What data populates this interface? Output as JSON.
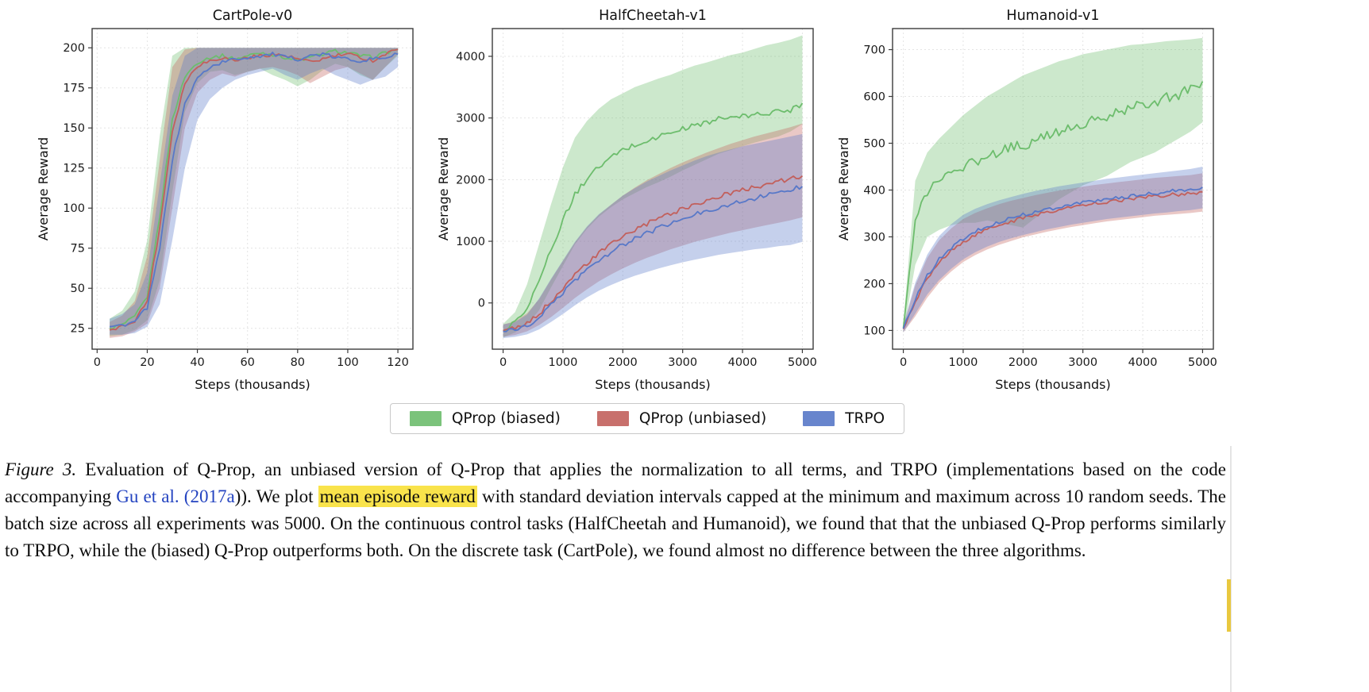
{
  "page": {
    "background": "#ffffff"
  },
  "chart_data": [
    {
      "type": "line",
      "title": "CartPole-v0",
      "xlabel": "Steps (thousands)",
      "ylabel": "Average Reward",
      "xlim": [
        -2,
        126
      ],
      "ylim": [
        12,
        212
      ],
      "xticks": [
        0,
        20,
        40,
        60,
        80,
        100,
        120
      ],
      "yticks": [
        25,
        50,
        75,
        100,
        125,
        150,
        175,
        200
      ],
      "grid": true,
      "legend_position": "shared-below",
      "noise_amp": 1.2,
      "cap": 200,
      "x": [
        5,
        10,
        15,
        20,
        25,
        30,
        35,
        40,
        45,
        50,
        55,
        60,
        65,
        70,
        75,
        80,
        85,
        90,
        95,
        100,
        105,
        110,
        115,
        120
      ],
      "series": [
        {
          "name": "QProp (biased)",
          "color": "#6dbd6d",
          "noise": 1,
          "mean": [
            25,
            27,
            32,
            45,
            95,
            155,
            182,
            191,
            194,
            195,
            193,
            195,
            197,
            196,
            194,
            192,
            194,
            196,
            198,
            197,
            195,
            194,
            197,
            199
          ],
          "lo": [
            20,
            21,
            24,
            30,
            55,
            110,
            160,
            178,
            185,
            186,
            183,
            185,
            187,
            183,
            180,
            176,
            180,
            186,
            190,
            188,
            183,
            180,
            188,
            195
          ],
          "hi": [
            31,
            36,
            48,
            80,
            145,
            195,
            200,
            200,
            200,
            200,
            200,
            200,
            200,
            200,
            200,
            200,
            200,
            200,
            200,
            200,
            200,
            200,
            200,
            200
          ]
        },
        {
          "name": "QProp (unbiased)",
          "color": "#c2605c",
          "noise": 1,
          "mean": [
            24,
            26,
            30,
            42,
            88,
            148,
            178,
            189,
            192,
            194,
            192,
            194,
            195,
            196,
            195,
            193,
            191,
            193,
            195,
            196,
            194,
            192,
            196,
            199
          ],
          "lo": [
            19,
            20,
            23,
            28,
            50,
            100,
            150,
            172,
            180,
            184,
            182,
            185,
            187,
            188,
            186,
            183,
            178,
            182,
            186,
            188,
            184,
            180,
            188,
            196
          ],
          "hi": [
            29,
            33,
            42,
            70,
            130,
            188,
            199,
            200,
            200,
            200,
            200,
            200,
            200,
            200,
            200,
            200,
            200,
            200,
            200,
            200,
            200,
            200,
            200,
            200
          ]
        },
        {
          "name": "TRPO",
          "color": "#5878c8",
          "noise": 1,
          "mean": [
            26,
            27,
            29,
            38,
            75,
            130,
            165,
            181,
            188,
            191,
            193,
            194,
            195,
            196,
            194,
            193,
            195,
            196,
            194,
            193,
            192,
            193,
            194,
            196
          ],
          "lo": [
            21,
            21,
            22,
            26,
            40,
            80,
            125,
            155,
            168,
            175,
            180,
            183,
            185,
            187,
            183,
            180,
            184,
            187,
            183,
            180,
            177,
            180,
            182,
            188
          ],
          "hi": [
            31,
            34,
            40,
            60,
            115,
            170,
            195,
            200,
            200,
            200,
            200,
            200,
            200,
            200,
            200,
            200,
            200,
            200,
            200,
            200,
            200,
            200,
            200,
            200
          ]
        }
      ]
    },
    {
      "type": "line",
      "title": "HalfCheetah-v1",
      "xlabel": "Steps (thousands)",
      "ylabel": "Average Reward",
      "xlim": [
        -180,
        5180
      ],
      "ylim": [
        -750,
        4450
      ],
      "xticks": [
        0,
        1000,
        2000,
        3000,
        4000,
        5000
      ],
      "yticks": [
        0,
        1000,
        2000,
        3000,
        4000
      ],
      "grid": true,
      "legend_position": "shared-below",
      "noise_amp": 40,
      "cap": null,
      "x": [
        0,
        200,
        400,
        600,
        800,
        1000,
        1200,
        1400,
        1600,
        1800,
        2000,
        2200,
        2400,
        2600,
        2800,
        3000,
        3200,
        3400,
        3600,
        3800,
        4000,
        4200,
        4400,
        4600,
        4800,
        5000
      ],
      "series": [
        {
          "name": "QProp (biased)",
          "color": "#6dbd6d",
          "noise": 1.2,
          "mean": [
            -450,
            -320,
            -60,
            350,
            850,
            1350,
            1750,
            2020,
            2200,
            2350,
            2480,
            2560,
            2620,
            2700,
            2760,
            2820,
            2880,
            2930,
            2980,
            3010,
            3020,
            3050,
            3080,
            3100,
            3130,
            3240
          ],
          "lo": [
            -560,
            -480,
            -350,
            -120,
            250,
            600,
            950,
            1200,
            1400,
            1550,
            1680,
            1780,
            1880,
            1960,
            2050,
            2150,
            2240,
            2330,
            2420,
            2480,
            2540,
            2600,
            2650,
            2700,
            2780,
            2900
          ],
          "hi": [
            -340,
            -150,
            300,
            950,
            1600,
            2200,
            2680,
            2950,
            3150,
            3300,
            3400,
            3500,
            3570,
            3640,
            3700,
            3780,
            3850,
            3900,
            3960,
            4020,
            4060,
            4120,
            4180,
            4220,
            4270,
            4340
          ]
        },
        {
          "name": "QProp (unbiased)",
          "color": "#c2605c",
          "noise": 1,
          "mean": [
            -450,
            -420,
            -340,
            -180,
            30,
            250,
            450,
            640,
            800,
            950,
            1080,
            1180,
            1280,
            1370,
            1450,
            1530,
            1600,
            1660,
            1720,
            1780,
            1830,
            1880,
            1930,
            1970,
            2010,
            2060
          ],
          "lo": [
            -550,
            -520,
            -460,
            -360,
            -230,
            -80,
            80,
            220,
            350,
            460,
            560,
            650,
            730,
            800,
            870,
            930,
            990,
            1040,
            1090,
            1140,
            1180,
            1220,
            1260,
            1300,
            1340,
            1390
          ],
          "hi": [
            -350,
            -300,
            -170,
            60,
            380,
            680,
            980,
            1230,
            1430,
            1590,
            1740,
            1870,
            1990,
            2090,
            2190,
            2280,
            2360,
            2440,
            2510,
            2580,
            2640,
            2700,
            2750,
            2800,
            2850,
            2910
          ]
        },
        {
          "name": "TRPO",
          "color": "#5878c8",
          "noise": 1,
          "mean": [
            -460,
            -440,
            -380,
            -240,
            -40,
            170,
            370,
            540,
            690,
            820,
            940,
            1040,
            1130,
            1210,
            1290,
            1360,
            1430,
            1490,
            1550,
            1600,
            1650,
            1700,
            1740,
            1790,
            1840,
            1890
          ],
          "lo": [
            -570,
            -550,
            -510,
            -430,
            -310,
            -180,
            -40,
            90,
            200,
            290,
            370,
            440,
            500,
            560,
            610,
            660,
            700,
            740,
            780,
            810,
            840,
            870,
            890,
            920,
            940,
            990
          ],
          "hi": [
            -350,
            -310,
            -190,
            70,
            390,
            690,
            990,
            1240,
            1440,
            1590,
            1740,
            1860,
            1970,
            2060,
            2150,
            2230,
            2310,
            2380,
            2440,
            2490,
            2540,
            2580,
            2620,
            2660,
            2700,
            2740
          ]
        }
      ]
    },
    {
      "type": "line",
      "title": "Humanoid-v1",
      "xlabel": "Steps (thousands)",
      "ylabel": "Average Reward",
      "xlim": [
        -180,
        5180
      ],
      "ylim": [
        60,
        745
      ],
      "xticks": [
        0,
        1000,
        2000,
        3000,
        4000,
        5000
      ],
      "yticks": [
        100,
        200,
        300,
        400,
        500,
        600,
        700
      ],
      "grid": true,
      "legend_position": "shared-below",
      "noise_amp": 4,
      "cap": null,
      "x": [
        0,
        200,
        400,
        600,
        800,
        1000,
        1200,
        1400,
        1600,
        1800,
        2000,
        2200,
        2400,
        2600,
        2800,
        3000,
        3200,
        3400,
        3600,
        3800,
        4000,
        4200,
        4400,
        4600,
        4800,
        5000
      ],
      "series": [
        {
          "name": "QProp (biased)",
          "color": "#6dbd6d",
          "noise": 3,
          "mean": [
            105,
            330,
            400,
            420,
            435,
            450,
            460,
            470,
            485,
            495,
            490,
            505,
            515,
            525,
            532,
            540,
            548,
            555,
            565,
            575,
            582,
            590,
            598,
            605,
            615,
            632
          ],
          "lo": [
            95,
            240,
            300,
            315,
            325,
            330,
            330,
            335,
            330,
            325,
            320,
            340,
            360,
            380,
            395,
            410,
            420,
            430,
            445,
            460,
            470,
            480,
            495,
            510,
            525,
            545
          ],
          "hi": [
            115,
            420,
            480,
            510,
            535,
            560,
            580,
            600,
            615,
            630,
            645,
            655,
            665,
            675,
            682,
            690,
            695,
            700,
            705,
            710,
            712,
            715,
            718,
            720,
            722,
            725
          ]
        },
        {
          "name": "QProp (unbiased)",
          "color": "#c2605c",
          "noise": 1,
          "mean": [
            103,
            162,
            212,
            246,
            270,
            289,
            304,
            315,
            325,
            333,
            340,
            347,
            353,
            358,
            363,
            367,
            371,
            375,
            378,
            381,
            384,
            387,
            389,
            391,
            393,
            396
          ],
          "lo": [
            96,
            130,
            170,
            202,
            226,
            246,
            261,
            273,
            283,
            291,
            299,
            305,
            311,
            316,
            321,
            325,
            329,
            333,
            336,
            339,
            342,
            345,
            347,
            349,
            351,
            354
          ],
          "hi": [
            110,
            196,
            255,
            293,
            318,
            338,
            351,
            361,
            370,
            377,
            383,
            389,
            394,
            399,
            403,
            407,
            411,
            414,
            417,
            420,
            423,
            426,
            428,
            430,
            432,
            436
          ]
        },
        {
          "name": "TRPO",
          "color": "#5878c8",
          "noise": 1,
          "mean": [
            104,
            167,
            217,
            252,
            277,
            296,
            311,
            322,
            332,
            340,
            347,
            353,
            359,
            364,
            369,
            373,
            377,
            381,
            384,
            387,
            390,
            393,
            396,
            399,
            401,
            406
          ],
          "lo": [
            96,
            136,
            177,
            208,
            232,
            252,
            267,
            279,
            289,
            297,
            304,
            310,
            316,
            321,
            326,
            330,
            334,
            338,
            341,
            344,
            347,
            350,
            352,
            355,
            357,
            361
          ],
          "hi": [
            112,
            202,
            262,
            302,
            327,
            347,
            360,
            370,
            378,
            385,
            392,
            398,
            403,
            408,
            412,
            416,
            420,
            424,
            427,
            430,
            433,
            436,
            439,
            442,
            445,
            450
          ]
        }
      ]
    }
  ],
  "legend": {
    "entries": [
      {
        "label": "QProp (biased)",
        "color": "#6dbd6d"
      },
      {
        "label": "QProp (unbiased)",
        "color": "#c2605c"
      },
      {
        "label": "TRPO",
        "color": "#5878c8"
      }
    ]
  },
  "caption": {
    "segments": [
      {
        "text": "Figure 3.",
        "style": "italic"
      },
      {
        "text": " Evaluation of Q-Prop, an unbiased version of Q-Prop that applies the normalization to all terms, and TRPO (implementations based on the code accompanying ",
        "style": "normal"
      },
      {
        "text": "Gu et al.",
        "style": "link"
      },
      {
        "text": " ",
        "style": "normal"
      },
      {
        "text": "(2017a",
        "style": "link"
      },
      {
        "text": ")). We plot ",
        "style": "normal"
      },
      {
        "text": "mean episode reward",
        "style": "highlight"
      },
      {
        "text": " with standard deviation intervals capped at the minimum and maximum across 10 random seeds. The batch size across all experiments was 5000. On the continuous control tasks (HalfCheetah and Humanoid), we found that that the unbiased Q-Prop performs similarly to TRPO, while the (biased) Q-Prop outperforms both. On the discrete task (CartPole), we found almost no difference between the three algorithms.",
        "style": "normal"
      }
    ],
    "colors": {
      "link": "#2343c0",
      "highlight": "#f9e34b"
    }
  },
  "annotations": {
    "rule_color": "#e4e4e4",
    "marker_color": "#e9c83f"
  }
}
